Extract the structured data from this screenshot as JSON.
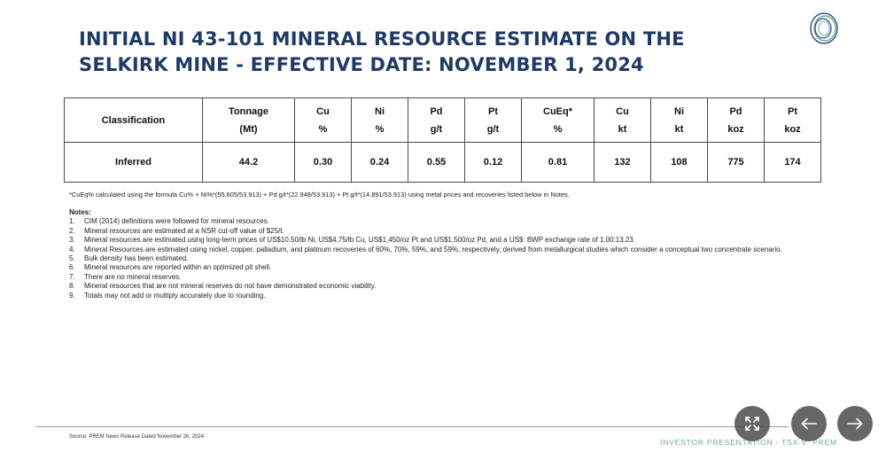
{
  "slide": {
    "title_line1": "INITIAL NI 43-101 MINERAL RESOURCE ESTIMATE ON THE",
    "title_line2": "SELKIRK MINE  - EFFECTIVE DATE: NOVEMBER 1, 2024",
    "logo_icon": "ring-logo-icon",
    "title_color": "#1f3a66",
    "accent_color": "#6aa8a6"
  },
  "table": {
    "headers": [
      {
        "top": "Classification",
        "bottom": ""
      },
      {
        "top": "Tonnage",
        "bottom": "(Mt)"
      },
      {
        "top": "Cu",
        "bottom": "%"
      },
      {
        "top": "Ni",
        "bottom": "%"
      },
      {
        "top": "Pd",
        "bottom": "g/t"
      },
      {
        "top": "Pt",
        "bottom": "g/t"
      },
      {
        "top": "CuEq*",
        "bottom": "%"
      },
      {
        "top": "Cu",
        "bottom": "kt"
      },
      {
        "top": "Ni",
        "bottom": "kt"
      },
      {
        "top": "Pd",
        "bottom": "koz"
      },
      {
        "top": "Pt",
        "bottom": "koz"
      }
    ],
    "rows": [
      [
        "Inferred",
        "44.2",
        "0.30",
        "0.24",
        "0.55",
        "0.12",
        "0.81",
        "132",
        "108",
        "775",
        "174"
      ]
    ]
  },
  "footnote": "*CuEq% calculated using the formula Cu% + Ni%*(55.605/53.913) + Pd g/t*(22.948/53.913) + Pt g/t*(14.891/53.913) using metal prices and recoveries listed below in Notes.",
  "notes": {
    "heading": "Notes:",
    "items": [
      {
        "num": "1.",
        "text": "CIM (2014) definitions were followed for mineral resources."
      },
      {
        "num": "2.",
        "text": "Mineral resources are estimated at a NSR cut-off value of $25/t."
      },
      {
        "num": "3.",
        "text": "Mineral resources are estimated using long-term prices of US$10.50/lb Ni, US$4.75/lb Cu, US$1,450/oz Pt and US$1,500/oz Pd, and a US$: BWP exchange rate of 1.00:13.23."
      },
      {
        "num": "4.",
        "text": "Mineral Resources are estimated using nickel, copper, palladium, and platinum recoveries of 60%, 70%, 59%, and 59%, respectively, derived from metallurgical studies which consider a conceptual two concentrate scenario."
      },
      {
        "num": "5.",
        "text": "Bulk density has been estimated."
      },
      {
        "num": "6.",
        "text": "Mineral resources are reported within an optimized pit shell."
      },
      {
        "num": "7.",
        "text": "There are no mineral reserves."
      },
      {
        "num": "8.",
        "text": "Mineral resources that are not mineral reserves do not have demonstrated economic viability."
      },
      {
        "num": "9.",
        "text": "Totals may not add or multiply accurately due to rounding."
      }
    ]
  },
  "source": "Source: PREM News Release Dated November 26, 2024",
  "footer_text": "INVESTOR PRESENTATION - TSX-V: PREM",
  "controls": {
    "fullscreen_icon": "expand-icon",
    "prev_icon": "arrow-left-icon",
    "next_icon": "arrow-right-icon"
  }
}
